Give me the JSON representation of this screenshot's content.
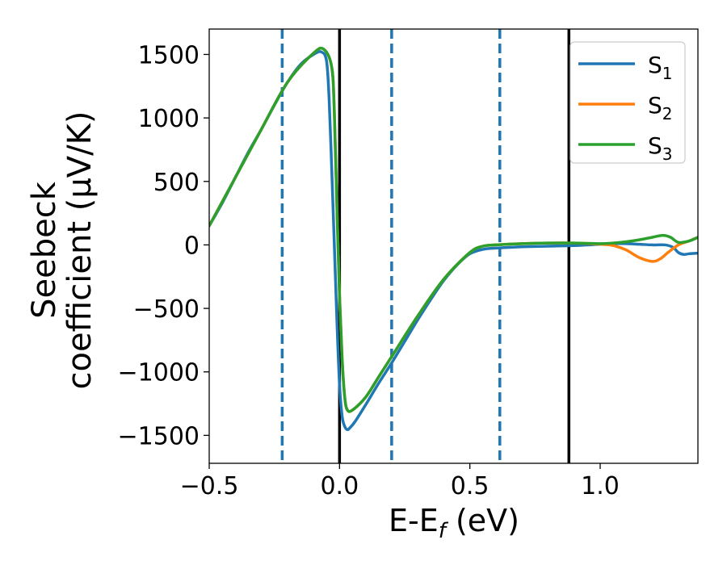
{
  "chart_data": {
    "type": "line",
    "xlabel": "E-E_f (eV)",
    "ylabel_line1": "Seebeck",
    "ylabel_line2": "coefficient  (μV/K)",
    "xlim": [
      -0.5,
      1.375
    ],
    "ylim": [
      -1720,
      1700
    ],
    "xticks": [
      -0.5,
      0.0,
      0.5,
      1.0
    ],
    "xtick_labels": [
      "−0.5",
      "0.0",
      "0.5",
      "1.0"
    ],
    "yticks": [
      -1500,
      -1000,
      -500,
      0,
      500,
      1000,
      1500
    ],
    "ytick_labels": [
      "−1500",
      "−1000",
      "−500",
      "0",
      "500",
      "1000",
      "1500"
    ],
    "grid": false,
    "legend_position": "top-right",
    "vlines": [
      {
        "x": -0.22,
        "style": "dashed",
        "color": "#1f77b4"
      },
      {
        "x": 0.0,
        "style": "solid",
        "color": "#000000"
      },
      {
        "x": 0.2,
        "style": "dashed",
        "color": "#1f77b4"
      },
      {
        "x": 0.615,
        "style": "dashed",
        "color": "#1f77b4"
      },
      {
        "x": 0.88,
        "style": "solid",
        "color": "#000000"
      }
    ],
    "series": [
      {
        "name": "S1",
        "color": "#1f77b4",
        "x": [
          -0.5,
          -0.45,
          -0.4,
          -0.35,
          -0.3,
          -0.25,
          -0.2,
          -0.15,
          -0.1,
          -0.07,
          -0.05,
          -0.04,
          -0.03,
          -0.02,
          -0.01,
          0.0,
          0.01,
          0.02,
          0.03,
          0.04,
          0.06,
          0.1,
          0.15,
          0.2,
          0.25,
          0.3,
          0.35,
          0.4,
          0.45,
          0.5,
          0.55,
          0.6,
          0.7,
          0.8,
          0.9,
          1.0,
          1.05,
          1.1,
          1.15,
          1.2,
          1.25,
          1.28,
          1.3,
          1.32,
          1.34,
          1.375
        ],
        "y": [
          150,
          330,
          530,
          730,
          910,
          1100,
          1280,
          1420,
          1500,
          1520,
          1450,
          1150,
          600,
          0,
          -600,
          -1100,
          -1350,
          -1430,
          -1455,
          -1440,
          -1390,
          -1260,
          -1090,
          -930,
          -760,
          -590,
          -430,
          -280,
          -160,
          -70,
          -35,
          -25,
          -15,
          -10,
          -5,
          5,
          10,
          10,
          5,
          0,
          0,
          -20,
          -60,
          -75,
          -70,
          -65
        ]
      },
      {
        "name": "S2",
        "color": "#ff7f0e",
        "x": [
          -0.5,
          -0.4,
          -0.3,
          -0.2,
          -0.1,
          -0.06,
          -0.03,
          -0.02,
          -0.01,
          0.0,
          0.01,
          0.02,
          0.03,
          0.05,
          0.1,
          0.15,
          0.2,
          0.3,
          0.4,
          0.5,
          0.55,
          0.6,
          0.7,
          0.8,
          0.9,
          1.0,
          1.05,
          1.1,
          1.15,
          1.2,
          1.23,
          1.26,
          1.3,
          1.34,
          1.375
        ],
        "y": [
          150,
          530,
          910,
          1280,
          1510,
          1540,
          1400,
          1050,
          300,
          -400,
          -900,
          -1200,
          -1300,
          -1300,
          -1200,
          -1040,
          -880,
          -560,
          -270,
          -60,
          -10,
          0,
          10,
          15,
          15,
          5,
          -5,
          -40,
          -100,
          -130,
          -110,
          -60,
          0,
          30,
          60
        ]
      },
      {
        "name": "S3",
        "color": "#2ca02c",
        "x": [
          -0.5,
          -0.4,
          -0.3,
          -0.2,
          -0.1,
          -0.06,
          -0.03,
          -0.02,
          -0.01,
          0.0,
          0.01,
          0.02,
          0.03,
          0.05,
          0.1,
          0.15,
          0.2,
          0.3,
          0.4,
          0.5,
          0.55,
          0.6,
          0.7,
          0.8,
          0.9,
          1.0,
          1.05,
          1.1,
          1.15,
          1.2,
          1.24,
          1.27,
          1.3,
          1.34,
          1.375
        ],
        "y": [
          150,
          530,
          910,
          1280,
          1510,
          1540,
          1400,
          1050,
          300,
          -400,
          -900,
          -1200,
          -1300,
          -1300,
          -1200,
          -1040,
          -880,
          -560,
          -270,
          -60,
          -10,
          0,
          10,
          15,
          15,
          10,
          15,
          25,
          40,
          60,
          75,
          60,
          20,
          30,
          60
        ]
      }
    ]
  }
}
